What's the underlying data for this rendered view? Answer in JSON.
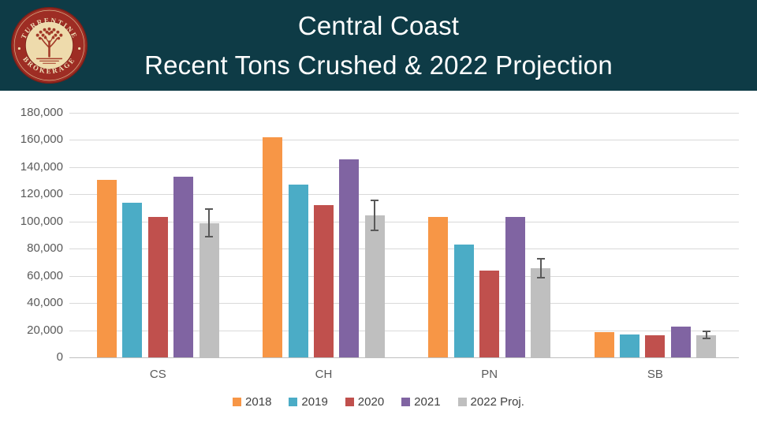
{
  "header": {
    "title_line1": "Central Coast",
    "title_line2": "Recent Tons Crushed & 2022 Projection",
    "background_color": "#0e3b46",
    "logo": {
      "top_text": "TURRENTINE",
      "bottom_text": "BROKERAGE",
      "ring_color": "#9e2d24",
      "center_color": "#eedbac",
      "art_color": "#a33a28"
    }
  },
  "chart_data": {
    "type": "bar",
    "title": "Central Coast Recent Tons Crushed & 2022 Projection",
    "categories": [
      "CS",
      "CH",
      "PN",
      "SB"
    ],
    "series": [
      {
        "name": "2018",
        "color": "#F79646",
        "values": [
          130500,
          162000,
          103500,
          18500
        ]
      },
      {
        "name": "2019",
        "color": "#4BACC6",
        "values": [
          114000,
          127000,
          83000,
          17000
        ]
      },
      {
        "name": "2020",
        "color": "#C0504D",
        "values": [
          103500,
          112000,
          64000,
          16000
        ]
      },
      {
        "name": "2021",
        "color": "#8064A2",
        "values": [
          133000,
          145500,
          103500,
          22500
        ]
      },
      {
        "name": "2022 Proj.",
        "color": "#BFBFBF",
        "values": [
          99000,
          104500,
          65500,
          16500
        ]
      }
    ],
    "error_bars": {
      "series": "2022 Proj.",
      "plus_minus": [
        10000,
        11000,
        7000,
        2500
      ],
      "color": "#595959"
    },
    "ylim": [
      0,
      180000
    ],
    "yticks": [
      0,
      20000,
      40000,
      60000,
      80000,
      100000,
      120000,
      140000,
      160000,
      180000
    ],
    "ytick_labels": [
      "0",
      "20,000",
      "40,000",
      "60,000",
      "80,000",
      "100,000",
      "120,000",
      "140,000",
      "160,000",
      "180,000"
    ],
    "xlabel": "",
    "ylabel": "",
    "grid": true,
    "legend_position": "bottom"
  },
  "colors": {
    "grid": "#D9D9D9",
    "axis": "#BFBFBF",
    "tick_text": "#595959",
    "legend_text": "#404040"
  }
}
